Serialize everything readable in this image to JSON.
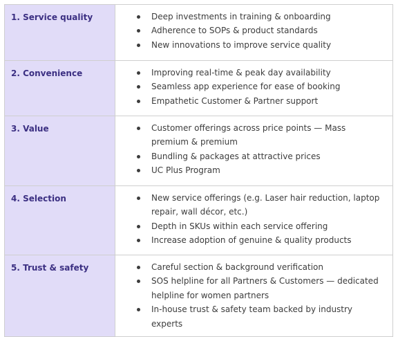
{
  "rows": [
    {
      "category": "1. Service quality",
      "items": [
        "Deep investments in training & onboarding",
        "Adherence to SOPs & product standards",
        "New innovations to improve service quality"
      ]
    },
    {
      "category": "2. Convenience",
      "items": [
        "Improving real-time & peak day availability",
        "Seamless app experience for ease of booking",
        "Empathetic Customer & Partner support"
      ]
    },
    {
      "category": "3. Value",
      "items": [
        "Customer offerings across price points — Mass premium & premium",
        "Bundling & packages at attractive prices",
        "UC Plus Program"
      ]
    },
    {
      "category": "4. Selection",
      "items": [
        "New service offerings (e.g. Laser hair reduction, laptop repair, wall décor, etc.)",
        "Depth in SKUs within each service offering",
        "Increase adoption of genuine & quality products"
      ]
    },
    {
      "category": "5. Trust & safety",
      "items": [
        "Careful section & background verification",
        "SOS helpline for all Partners & Customers — dedicated helpline for women partners",
        "In-house trust & safety team backed by industry experts"
      ]
    }
  ]
}
